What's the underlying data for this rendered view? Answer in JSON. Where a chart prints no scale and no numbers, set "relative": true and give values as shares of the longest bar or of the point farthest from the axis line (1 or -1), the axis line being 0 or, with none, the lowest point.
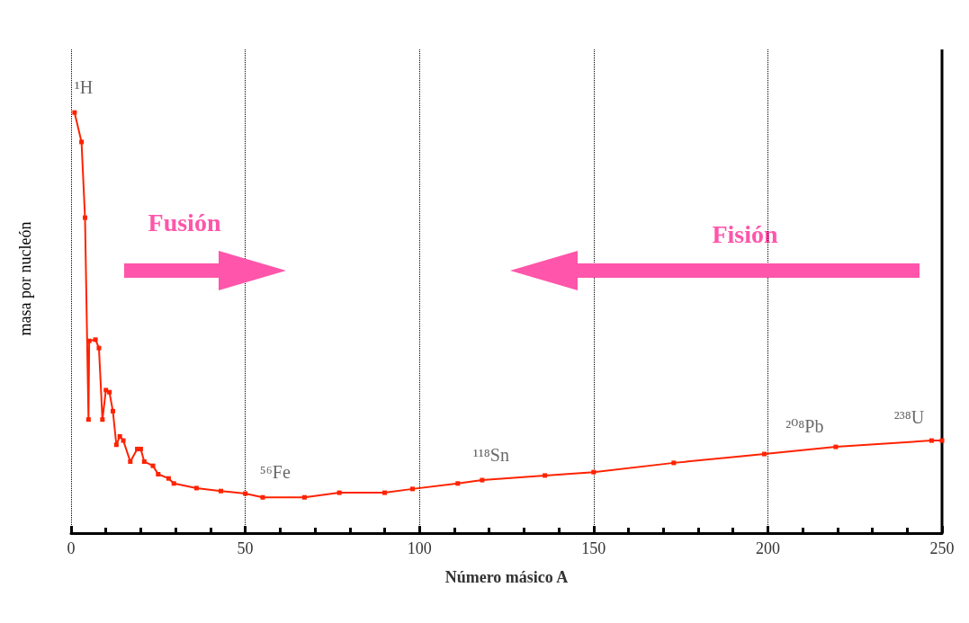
{
  "chart_data": {
    "type": "line",
    "relative": true,
    "xlabel": "Número másico A",
    "ylabel": "masa por nucleón",
    "xlim": [
      0,
      250
    ],
    "xticks": [
      0,
      50,
      100,
      150,
      200,
      250
    ],
    "grid": "x",
    "marker": "square",
    "line_style": "solid",
    "annotations": [
      {
        "text": "¹H",
        "x": 1,
        "y": 1
      },
      {
        "text": "⁵⁶Fe",
        "x": 56,
        "y": 0.085
      },
      {
        "text": "¹¹⁸Sn",
        "x": 118,
        "y": 0.126
      },
      {
        "text": "²⁰⁸Pb",
        "x": 208,
        "y": 0.195
      },
      {
        "text": "²³⁸U",
        "x": 238,
        "y": 0.215
      },
      "Fusión",
      "Fisión"
    ],
    "series": [
      {
        "color": "#ff2200",
        "x": [
          1,
          3,
          4,
          5,
          5.2,
          7,
          8,
          9,
          10,
          11,
          12,
          13,
          14,
          15,
          17,
          19,
          20,
          21,
          23.5,
          25,
          28,
          29.5,
          36,
          43,
          50,
          55,
          67,
          77,
          90,
          98,
          111,
          118,
          136,
          150,
          173,
          199,
          219.5,
          247,
          250
        ],
        "values": [
          1,
          0.93,
          0.75,
          0.27,
          0.457,
          0.46,
          0.44,
          0.27,
          0.34,
          0.335,
          0.29,
          0.21,
          0.23,
          0.22,
          0.17,
          0.2,
          0.2,
          0.17,
          0.16,
          0.14,
          0.13,
          0.118,
          0.107,
          0.1,
          0.094,
          0.085,
          0.085,
          0.096,
          0.096,
          0.105,
          0.118,
          0.126,
          0.137,
          0.145,
          0.167,
          0.188,
          0.205,
          0.22,
          0.22
        ]
      }
    ]
  }
}
